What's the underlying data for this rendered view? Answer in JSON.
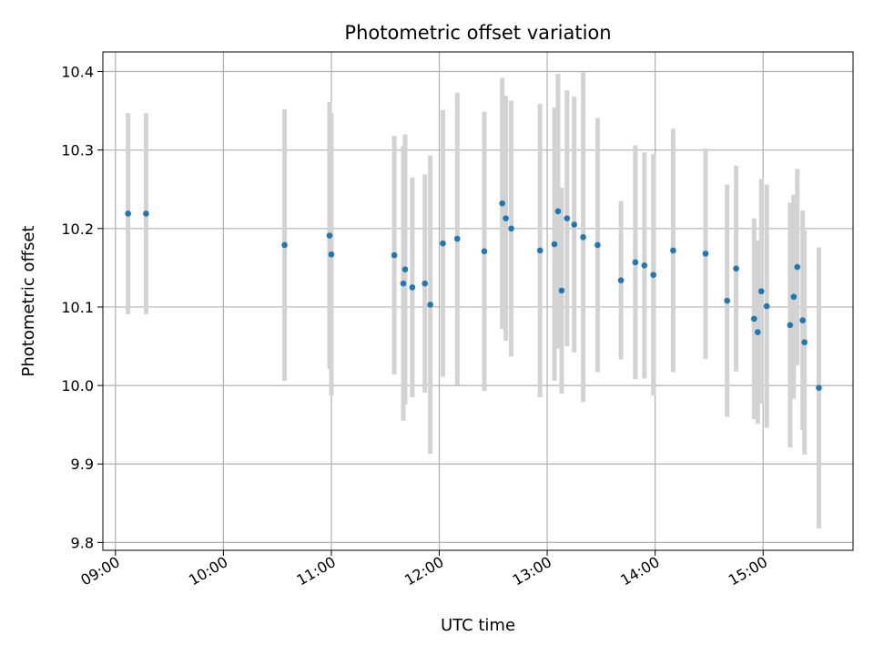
{
  "chart_data": {
    "type": "scatter",
    "title": "Photometric offset variation",
    "xlabel": "UTC time",
    "ylabel": "Photometric offset",
    "grid": true,
    "legend": "none",
    "x_ticks": [
      "09:00",
      "10:00",
      "11:00",
      "12:00",
      "13:00",
      "14:00",
      "15:00"
    ],
    "y_ticks": [
      "9.8",
      "9.9",
      "10.0",
      "10.1",
      "10.2",
      "10.3",
      "10.4"
    ],
    "xlim": [
      "08:53",
      "15:50"
    ],
    "ylim": [
      9.79,
      10.425
    ],
    "colors": {
      "marker": "#1f77b4",
      "errorbar": "#d3d3d3",
      "grid": "#b0b0b0"
    },
    "series": [
      {
        "x": [
          "09:07",
          "09:17",
          "10:34",
          "10:59",
          "11:00",
          "11:35",
          "11:40",
          "11:41",
          "11:45",
          "11:52",
          "11:55",
          "12:02",
          "12:10",
          "12:25",
          "12:35",
          "12:37",
          "12:40",
          "12:56",
          "13:04",
          "13:06",
          "13:08",
          "13:11",
          "13:15",
          "13:20",
          "13:28",
          "13:41",
          "13:49",
          "13:54",
          "13:59",
          "14:10",
          "14:28",
          "14:40",
          "14:45",
          "14:55",
          "14:57",
          "14:59",
          "15:02",
          "15:15",
          "15:17",
          "15:19",
          "15:22",
          "15:23",
          "15:31"
        ],
        "y": [
          10.219,
          10.219,
          10.179,
          10.191,
          10.167,
          10.166,
          10.13,
          10.148,
          10.125,
          10.13,
          10.103,
          10.181,
          10.187,
          10.171,
          10.232,
          10.213,
          10.2,
          10.172,
          10.18,
          10.222,
          10.121,
          10.213,
          10.205,
          10.189,
          10.179,
          10.134,
          10.157,
          10.153,
          10.141,
          10.172,
          10.168,
          10.108,
          10.149,
          10.085,
          10.068,
          10.12,
          10.101,
          10.077,
          10.113,
          10.151,
          10.083,
          10.055,
          9.997
        ],
        "yerr": [
          0.128,
          0.128,
          0.173,
          0.17,
          0.18,
          0.152,
          0.175,
          0.172,
          0.14,
          0.139,
          0.19,
          0.17,
          0.186,
          0.178,
          0.16,
          0.156,
          0.163,
          0.187,
          0.174,
          0.175,
          0.131,
          0.163,
          0.163,
          0.21,
          0.162,
          0.101,
          0.149,
          0.144,
          0.154,
          0.155,
          0.134,
          0.148,
          0.131,
          0.128,
          0.117,
          0.143,
          0.155,
          0.156,
          0.13,
          0.125,
          0.14,
          0.143,
          0.179
        ]
      }
    ]
  }
}
